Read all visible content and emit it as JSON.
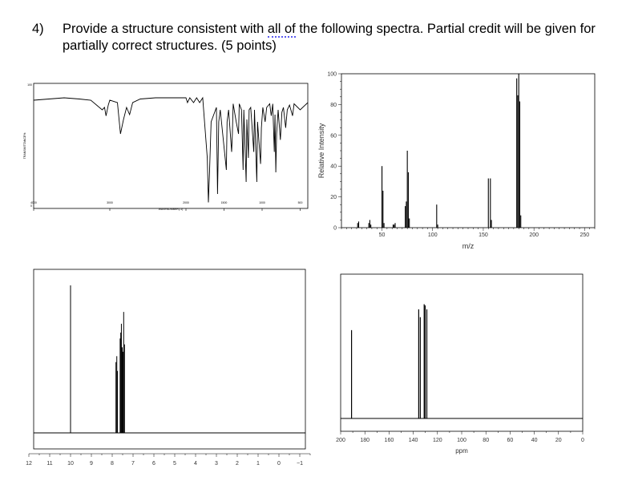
{
  "question": {
    "number": "4)",
    "text_before": "Provide a structure consistent with ",
    "underlined": "all of",
    "text_after": " the following spectra. Partial credit will be given for partially correct structures. (5 points)"
  },
  "ir": {
    "type": "line",
    "ylabel": "TRANSMITTANCE%",
    "xlabel": "WAVENUMBER(-1)",
    "y_top_label": "100",
    "y_zero_label": "0",
    "x_tick_labels": [
      "4000",
      "3000",
      "2000",
      "1500",
      "1000",
      "500"
    ],
    "x_ticks": [
      4000,
      3000,
      2000,
      1500,
      1000,
      500
    ],
    "xlim": [
      4000,
      400
    ],
    "ylim": [
      0,
      100
    ],
    "points": [
      [
        4000,
        88
      ],
      [
        3800,
        89
      ],
      [
        3600,
        90
      ],
      [
        3400,
        89
      ],
      [
        3250,
        88
      ],
      [
        3100,
        80
      ],
      [
        3070,
        82
      ],
      [
        3050,
        75
      ],
      [
        3020,
        84
      ],
      [
        3000,
        88
      ],
      [
        2900,
        86
      ],
      [
        2860,
        60
      ],
      [
        2820,
        72
      ],
      [
        2780,
        82
      ],
      [
        2740,
        76
      ],
      [
        2700,
        86
      ],
      [
        2600,
        89
      ],
      [
        2400,
        90
      ],
      [
        2200,
        90
      ],
      [
        2000,
        90
      ],
      [
        1980,
        86
      ],
      [
        1950,
        90
      ],
      [
        1900,
        86
      ],
      [
        1860,
        90
      ],
      [
        1820,
        86
      ],
      [
        1780,
        90
      ],
      [
        1720,
        40
      ],
      [
        1705,
        3
      ],
      [
        1690,
        30
      ],
      [
        1670,
        70
      ],
      [
        1600,
        82
      ],
      [
        1585,
        10
      ],
      [
        1570,
        70
      ],
      [
        1550,
        80
      ],
      [
        1470,
        30
      ],
      [
        1460,
        70
      ],
      [
        1440,
        80
      ],
      [
        1400,
        45
      ],
      [
        1390,
        60
      ],
      [
        1380,
        85
      ],
      [
        1340,
        70
      ],
      [
        1310,
        60
      ],
      [
        1300,
        85
      ],
      [
        1270,
        80
      ],
      [
        1250,
        30
      ],
      [
        1240,
        80
      ],
      [
        1210,
        20
      ],
      [
        1200,
        72
      ],
      [
        1180,
        40
      ],
      [
        1170,
        80
      ],
      [
        1150,
        82
      ],
      [
        1110,
        45
      ],
      [
        1100,
        80
      ],
      [
        1070,
        20
      ],
      [
        1060,
        70
      ],
      [
        1020,
        35
      ],
      [
        1010,
        65
      ],
      [
        990,
        82
      ],
      [
        960,
        70
      ],
      [
        940,
        82
      ],
      [
        900,
        85
      ],
      [
        880,
        75
      ],
      [
        860,
        85
      ],
      [
        840,
        45
      ],
      [
        830,
        76
      ],
      [
        820,
        28
      ],
      [
        810,
        60
      ],
      [
        790,
        80
      ],
      [
        760,
        55
      ],
      [
        740,
        78
      ],
      [
        720,
        82
      ],
      [
        690,
        65
      ],
      [
        670,
        80
      ],
      [
        640,
        84
      ],
      [
        600,
        75
      ],
      [
        580,
        85
      ],
      [
        500,
        80
      ],
      [
        400,
        86
      ]
    ]
  },
  "ms": {
    "type": "bar",
    "xlabel": "m/z",
    "ylabel": "Relative Intensity",
    "xlim": [
      10,
      260
    ],
    "ylim": [
      0,
      100
    ],
    "x_ticks": [
      50,
      100,
      150,
      200,
      250
    ],
    "x_tick_labels": [
      "50",
      "100",
      "150",
      "200",
      "250"
    ],
    "y_ticks": [
      20,
      40,
      60,
      80,
      100
    ],
    "y_tick_labels": [
      "20",
      "40",
      "60",
      "80",
      "100"
    ],
    "y_zero_label": "0",
    "peaks": [
      [
        26,
        3
      ],
      [
        27,
        4
      ],
      [
        37,
        3
      ],
      [
        38,
        5
      ],
      [
        39,
        2
      ],
      [
        50,
        40
      ],
      [
        51,
        24
      ],
      [
        52,
        3
      ],
      [
        61,
        2
      ],
      [
        62,
        2
      ],
      [
        63,
        3
      ],
      [
        73,
        14
      ],
      [
        74,
        17
      ],
      [
        75,
        50
      ],
      [
        76,
        36
      ],
      [
        77,
        6
      ],
      [
        104,
        15
      ],
      [
        105,
        2
      ],
      [
        155,
        32
      ],
      [
        157,
        32
      ],
      [
        158,
        5
      ],
      [
        183,
        97
      ],
      [
        184,
        86
      ],
      [
        185,
        100
      ],
      [
        186,
        82
      ],
      [
        187,
        8
      ]
    ]
  },
  "h_nmr": {
    "type": "line",
    "xlim": [
      12,
      -1.5
    ],
    "x_ticks": [
      12,
      11,
      10,
      9,
      8,
      7,
      6,
      5,
      4,
      3,
      2,
      1,
      0,
      -1
    ],
    "x_tick_labels": [
      "12",
      "11",
      "10",
      "9",
      "8",
      "7",
      "6",
      "5",
      "4",
      "3",
      "2",
      "1",
      "0",
      "−1"
    ],
    "peaks": [
      [
        10.0,
        100
      ],
      [
        7.82,
        48
      ],
      [
        7.78,
        52
      ],
      [
        7.75,
        42
      ],
      [
        7.62,
        64
      ],
      [
        7.59,
        68
      ],
      [
        7.56,
        74
      ],
      [
        7.52,
        58
      ],
      [
        7.48,
        55
      ],
      [
        7.45,
        82
      ],
      [
        7.41,
        60
      ]
    ]
  },
  "c_nmr": {
    "type": "line",
    "xlabel": "ppm",
    "xlim": [
      200,
      0
    ],
    "x_ticks": [
      200,
      180,
      160,
      140,
      120,
      100,
      80,
      60,
      40,
      20,
      0
    ],
    "x_tick_labels": [
      "200",
      "180",
      "160",
      "140",
      "120",
      "100",
      "80",
      "60",
      "40",
      "20",
      "0"
    ],
    "peaks": [
      [
        191.0,
        68
      ],
      [
        135.5,
        84
      ],
      [
        134.2,
        78
      ],
      [
        131.0,
        88
      ],
      [
        130.2,
        87
      ],
      [
        128.8,
        84
      ]
    ]
  }
}
